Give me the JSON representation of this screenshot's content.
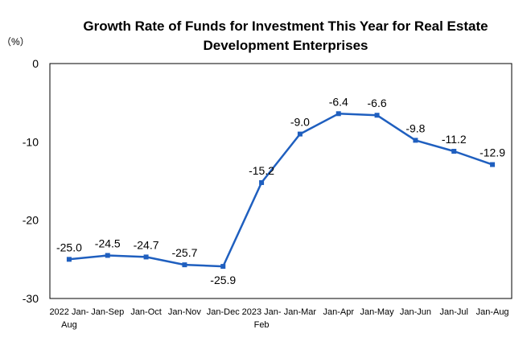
{
  "chart_data": {
    "type": "line",
    "title_line1": "Growth Rate of Funds for Investment This Year for Real Estate",
    "title_line2": "Development Enterprises",
    "unit": "（%）",
    "categories": [
      [
        "2022 Jan-",
        "Aug"
      ],
      [
        "Jan-Sep"
      ],
      [
        "Jan-Oct"
      ],
      [
        "Jan-Nov"
      ],
      [
        "Jan-Dec"
      ],
      [
        "2023 Jan-",
        "Feb"
      ],
      [
        "Jan-Mar"
      ],
      [
        "Jan-Apr"
      ],
      [
        "Jan-May"
      ],
      [
        "Jan-Jun"
      ],
      [
        "Jan-Jul"
      ],
      [
        "Jan-Aug"
      ]
    ],
    "values": [
      -25.0,
      -24.5,
      -24.7,
      -25.7,
      -25.9,
      -15.2,
      -9.0,
      -6.4,
      -6.6,
      -9.8,
      -11.2,
      -12.9
    ],
    "data_labels": [
      "-25.0",
      "-24.5",
      "-24.7",
      "-25.7",
      "-25.9",
      "-15.2",
      "-9.0",
      "-6.4",
      "-6.6",
      "-9.8",
      "-11.2",
      "-12.9"
    ],
    "label_below": [
      false,
      false,
      false,
      false,
      true,
      false,
      false,
      false,
      false,
      false,
      false,
      false
    ],
    "y_ticks": [
      0,
      -10,
      -20,
      -30
    ],
    "ylim": [
      -30,
      0
    ],
    "grid": false,
    "line_color": "#1f5fbf"
  }
}
